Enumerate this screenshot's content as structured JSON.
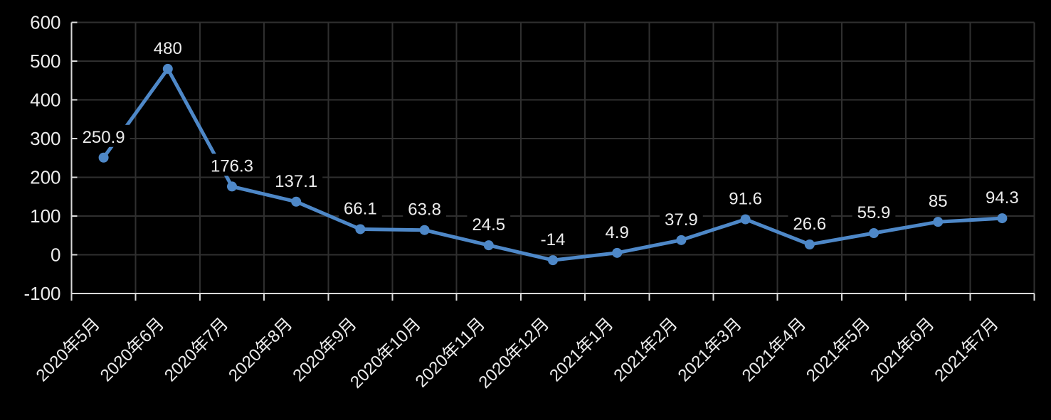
{
  "window": {
    "background": "#000000"
  },
  "chart_data": {
    "type": "line",
    "title": "",
    "xlabel": "",
    "ylabel": "",
    "categories": [
      "2020年5月",
      "2020年6月",
      "2020年7月",
      "2020年8月",
      "2020年9月",
      "2020年10月",
      "2020年11月",
      "2020年12月",
      "2021年1月",
      "2021年2月",
      "2021年3月",
      "2021年4月",
      "2021年5月",
      "2021年6月",
      "2021年7月"
    ],
    "series": [
      {
        "name": "",
        "values": [
          250.9,
          480,
          176.3,
          137.1,
          66.1,
          63.8,
          24.5,
          -14,
          4.9,
          37.9,
          91.6,
          26.6,
          55.9,
          85,
          94.3
        ],
        "point_labels": [
          "250.9",
          "480",
          "176.3",
          "137.1",
          "66.1",
          "63.8",
          "24.5",
          "-14",
          "4.9",
          "37.9",
          "91.6",
          "26.6",
          "55.9",
          "85",
          "94.3"
        ]
      }
    ],
    "ylim": [
      -100,
      600
    ],
    "yticks": [
      600,
      500,
      400,
      300,
      200,
      100,
      0,
      -100
    ],
    "ytick_labels": [
      "600",
      "500",
      "400",
      "300",
      "200",
      "100",
      "0",
      "-100"
    ],
    "grid": true,
    "legend": "none",
    "x_label_rotation_deg": -45,
    "marker": "circle",
    "colors": {
      "line": "#4e88c8",
      "marker": "#4e88c8",
      "background": "#000000",
      "gridline": "#2f2f2f",
      "axis": "#d9d9d9",
      "text": "#ececec",
      "label_background": "#000000"
    }
  }
}
